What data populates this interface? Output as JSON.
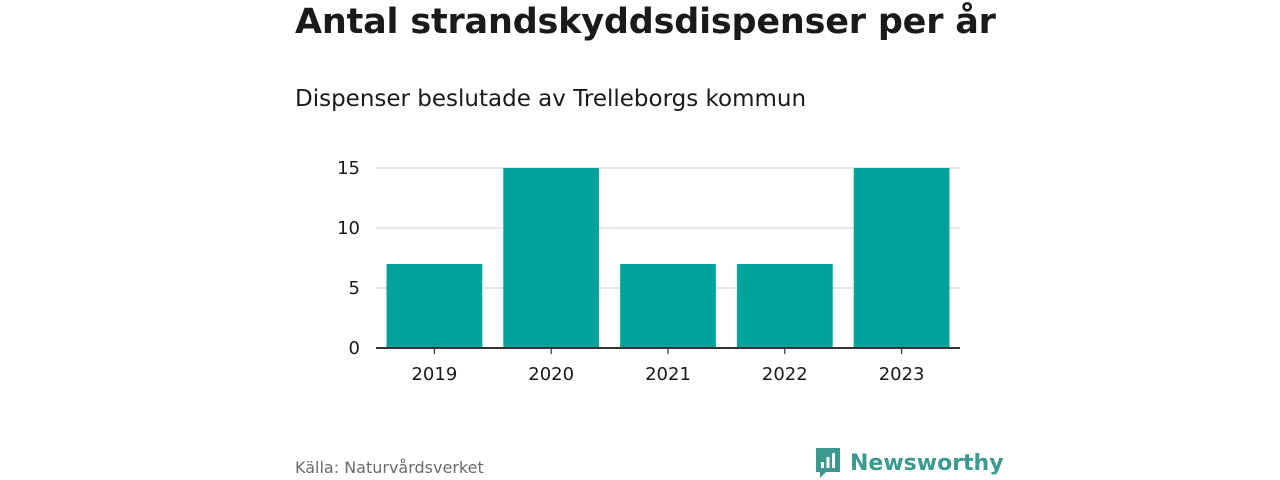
{
  "header": {
    "title": "Antal strandskyddsdispenser per år",
    "subtitle": "Dispenser beslutade av Trelleborgs kommun"
  },
  "footer": {
    "source": "Källa: Naturvårdsverket",
    "brand_name": "Newsworthy",
    "brand_color": "#3a9a8f",
    "brand_icon": "bar-chart-speech-bubble-icon"
  },
  "chart_data": {
    "type": "bar",
    "categories": [
      "2019",
      "2020",
      "2021",
      "2022",
      "2023"
    ],
    "values": [
      7,
      15,
      7,
      7,
      15
    ],
    "yticks": [
      0,
      5,
      10,
      15
    ],
    "ylim": [
      0,
      15
    ],
    "grid": true,
    "bar_color": "#00a39a",
    "title": "Antal strandskyddsdispenser per år",
    "subtitle": "Dispenser beslutade av Trelleborgs kommun",
    "xlabel": "",
    "ylabel": ""
  }
}
